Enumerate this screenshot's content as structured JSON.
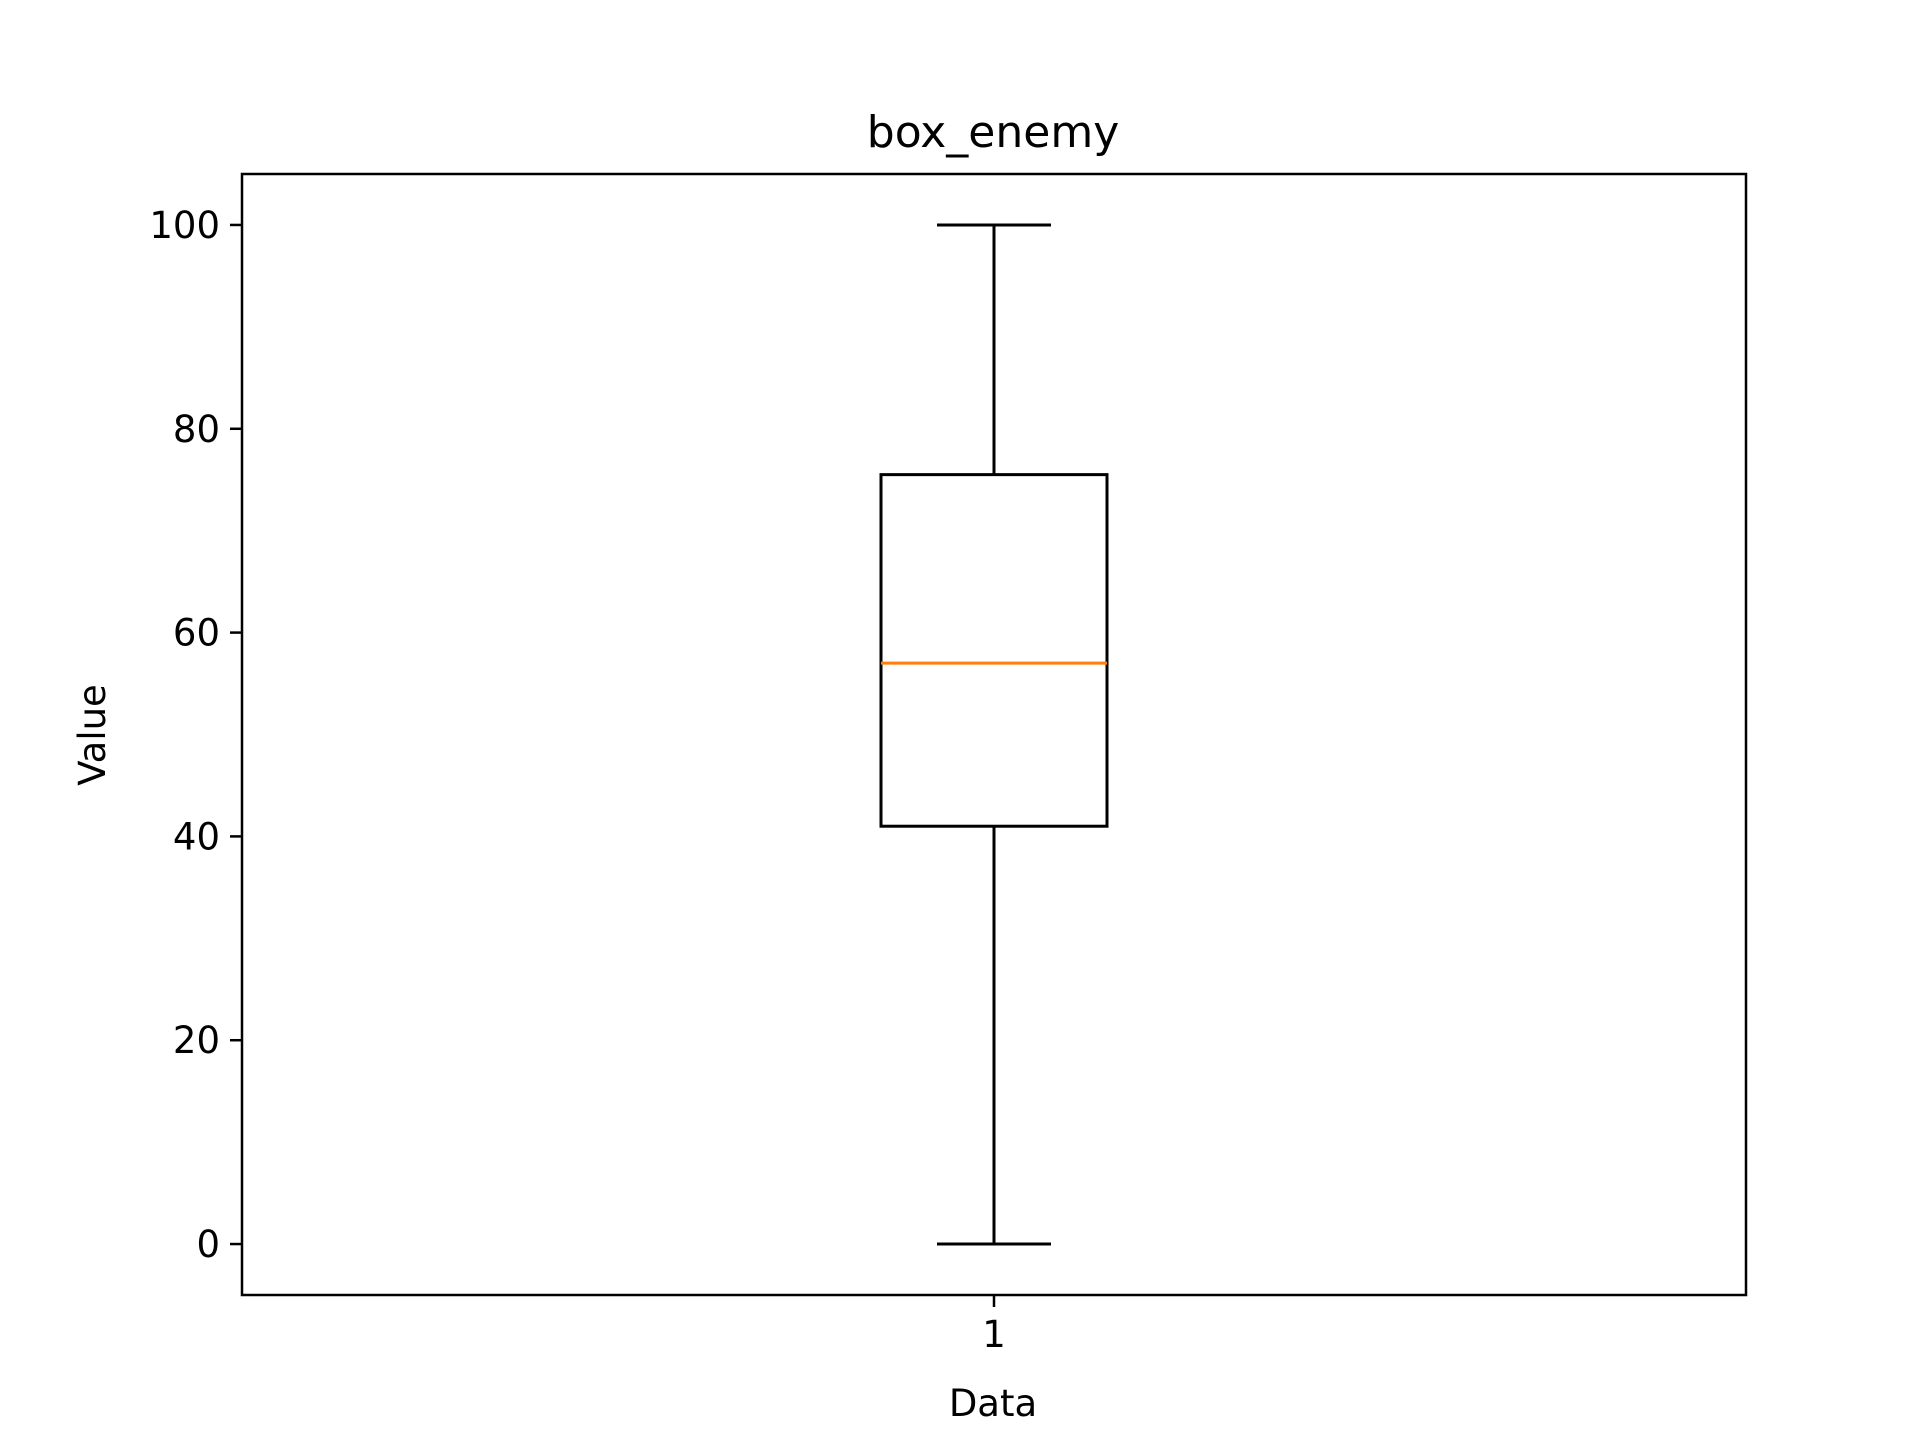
{
  "chart_data": {
    "type": "box",
    "title": "box_enemy",
    "xlabel": "Data",
    "ylabel": "Value",
    "categories": [
      "1"
    ],
    "boxes": [
      {
        "category": "1",
        "min": 0,
        "q1": 41,
        "median": 57,
        "q3": 75.5,
        "max": 100
      }
    ],
    "ylim": [
      -5,
      105
    ],
    "yticks": [
      0,
      20,
      40,
      60,
      80,
      100
    ],
    "grid": false,
    "colors": {
      "box": "#000000",
      "median": "#ff7f0e",
      "axes": "#000000",
      "background": "#ffffff"
    }
  }
}
